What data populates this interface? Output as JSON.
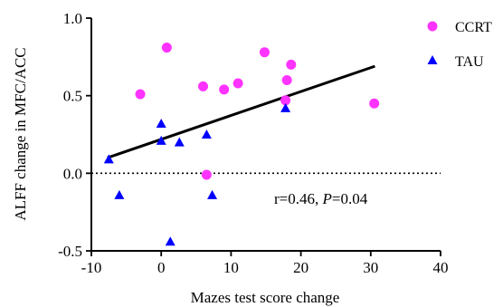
{
  "chart_data": {
    "type": "scatter",
    "title": "",
    "xlabel": "Mazes test score change",
    "ylabel": "ALFF change in MFC/ACC",
    "xlim": [
      -10,
      40
    ],
    "ylim": [
      -0.5,
      1.0
    ],
    "x_ticks": [
      "-10",
      "0",
      "10",
      "20",
      "30",
      "40"
    ],
    "y_ticks": [
      "-0.5",
      "0.0",
      "0.5",
      "1.0"
    ],
    "grid": false,
    "legend_position": "top-right",
    "series": [
      {
        "name": "CCRT",
        "marker": "circle",
        "color": "#ff33ff",
        "points": [
          {
            "x": -3.0,
            "y": 0.51
          },
          {
            "x": 0.8,
            "y": 0.81
          },
          {
            "x": 6.0,
            "y": 0.56
          },
          {
            "x": 6.5,
            "y": -0.01
          },
          {
            "x": 9.0,
            "y": 0.54
          },
          {
            "x": 11.0,
            "y": 0.58
          },
          {
            "x": 14.8,
            "y": 0.78
          },
          {
            "x": 17.8,
            "y": 0.47
          },
          {
            "x": 18.0,
            "y": 0.6
          },
          {
            "x": 18.6,
            "y": 0.7
          },
          {
            "x": 30.5,
            "y": 0.45
          }
        ]
      },
      {
        "name": "TAU",
        "marker": "triangle",
        "color": "#0000ff",
        "points": [
          {
            "x": -7.5,
            "y": 0.09
          },
          {
            "x": -6.0,
            "y": -0.14
          },
          {
            "x": 0.0,
            "y": 0.32
          },
          {
            "x": 0.0,
            "y": 0.21
          },
          {
            "x": 1.3,
            "y": -0.44
          },
          {
            "x": 2.6,
            "y": 0.2
          },
          {
            "x": 6.5,
            "y": 0.25
          },
          {
            "x": 7.3,
            "y": -0.14
          },
          {
            "x": 17.8,
            "y": 0.42
          }
        ]
      }
    ],
    "fit_line": {
      "x": [
        -7.7,
        30.6
      ],
      "y": [
        0.1,
        0.69
      ],
      "color": "#000000"
    },
    "reference_line": {
      "y": 0.0,
      "style": "dotted"
    },
    "annotation": {
      "prefix": "r=0.46, ",
      "p_symbol": "P",
      "p_value": "=0.04"
    }
  }
}
